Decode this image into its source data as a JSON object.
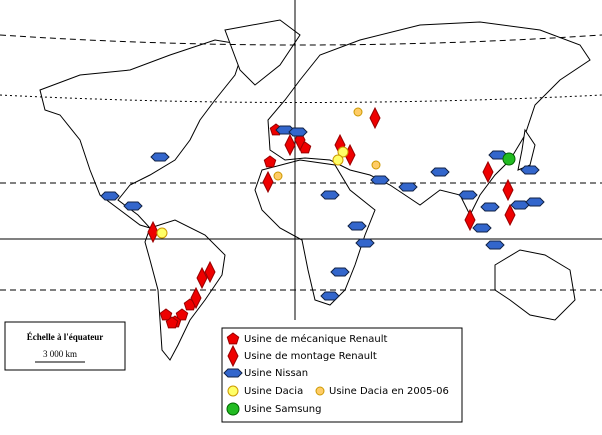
{
  "scale": {
    "title": "Échelle à l'équateur",
    "distance": "3 000 km"
  },
  "legend": {
    "items": [
      "Usine de mécanique Renault",
      "Usine de montage Renault",
      "Usine Nissan",
      "Usine Dacia",
      "Usine Dacia en 2005-06",
      "Usine Samsung"
    ]
  }
}
